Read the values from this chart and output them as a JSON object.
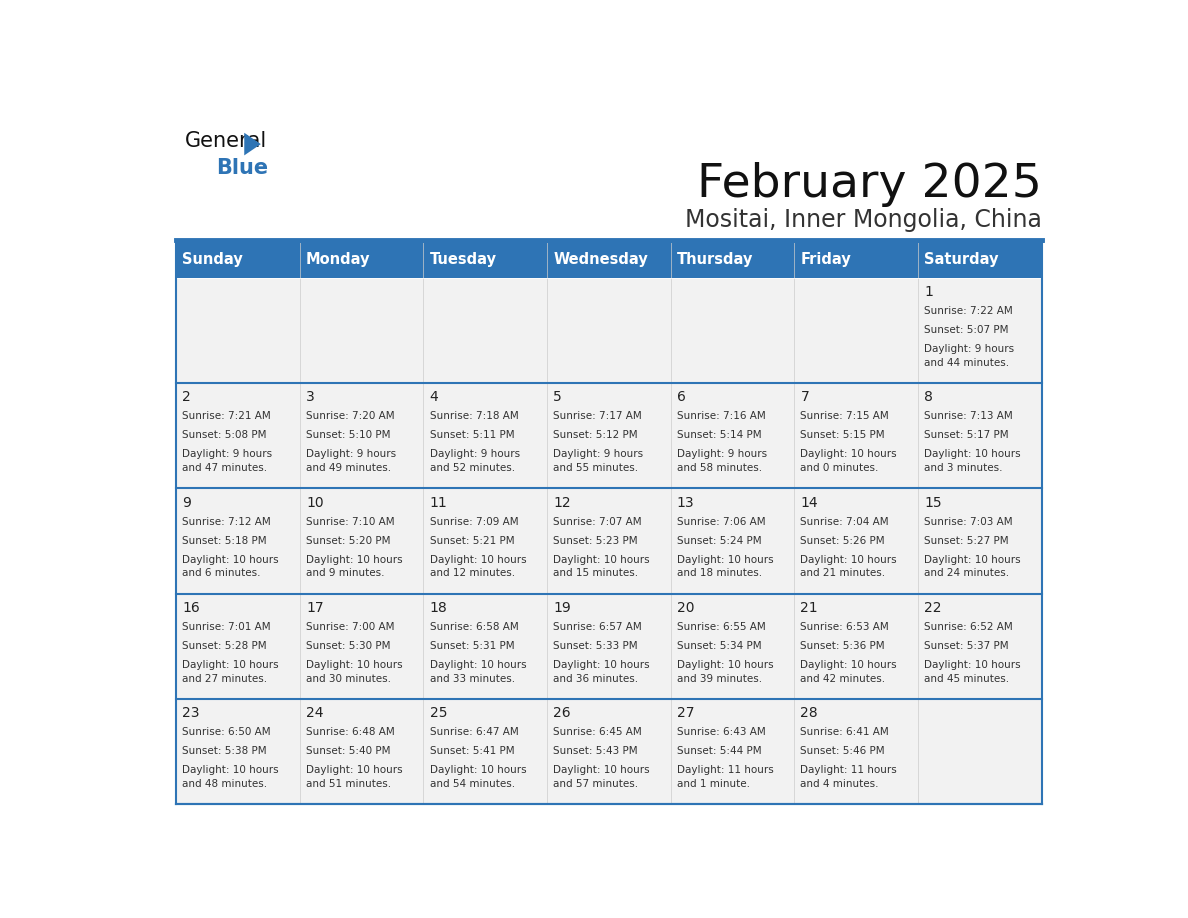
{
  "title": "February 2025",
  "subtitle": "Mositai, Inner Mongolia, China",
  "header_bg": "#2E74B5",
  "header_text": "#FFFFFF",
  "cell_bg_light": "#F2F2F2",
  "border_color": "#2E74B5",
  "day_names": [
    "Sunday",
    "Monday",
    "Tuesday",
    "Wednesday",
    "Thursday",
    "Friday",
    "Saturday"
  ],
  "days": [
    {
      "day": 1,
      "col": 6,
      "row": 0,
      "sunrise": "7:22 AM",
      "sunset": "5:07 PM",
      "daylight": "9 hours and 44 minutes."
    },
    {
      "day": 2,
      "col": 0,
      "row": 1,
      "sunrise": "7:21 AM",
      "sunset": "5:08 PM",
      "daylight": "9 hours and 47 minutes."
    },
    {
      "day": 3,
      "col": 1,
      "row": 1,
      "sunrise": "7:20 AM",
      "sunset": "5:10 PM",
      "daylight": "9 hours and 49 minutes."
    },
    {
      "day": 4,
      "col": 2,
      "row": 1,
      "sunrise": "7:18 AM",
      "sunset": "5:11 PM",
      "daylight": "9 hours and 52 minutes."
    },
    {
      "day": 5,
      "col": 3,
      "row": 1,
      "sunrise": "7:17 AM",
      "sunset": "5:12 PM",
      "daylight": "9 hours and 55 minutes."
    },
    {
      "day": 6,
      "col": 4,
      "row": 1,
      "sunrise": "7:16 AM",
      "sunset": "5:14 PM",
      "daylight": "9 hours and 58 minutes."
    },
    {
      "day": 7,
      "col": 5,
      "row": 1,
      "sunrise": "7:15 AM",
      "sunset": "5:15 PM",
      "daylight": "10 hours and 0 minutes."
    },
    {
      "day": 8,
      "col": 6,
      "row": 1,
      "sunrise": "7:13 AM",
      "sunset": "5:17 PM",
      "daylight": "10 hours and 3 minutes."
    },
    {
      "day": 9,
      "col": 0,
      "row": 2,
      "sunrise": "7:12 AM",
      "sunset": "5:18 PM",
      "daylight": "10 hours and 6 minutes."
    },
    {
      "day": 10,
      "col": 1,
      "row": 2,
      "sunrise": "7:10 AM",
      "sunset": "5:20 PM",
      "daylight": "10 hours and 9 minutes."
    },
    {
      "day": 11,
      "col": 2,
      "row": 2,
      "sunrise": "7:09 AM",
      "sunset": "5:21 PM",
      "daylight": "10 hours and 12 minutes."
    },
    {
      "day": 12,
      "col": 3,
      "row": 2,
      "sunrise": "7:07 AM",
      "sunset": "5:23 PM",
      "daylight": "10 hours and 15 minutes."
    },
    {
      "day": 13,
      "col": 4,
      "row": 2,
      "sunrise": "7:06 AM",
      "sunset": "5:24 PM",
      "daylight": "10 hours and 18 minutes."
    },
    {
      "day": 14,
      "col": 5,
      "row": 2,
      "sunrise": "7:04 AM",
      "sunset": "5:26 PM",
      "daylight": "10 hours and 21 minutes."
    },
    {
      "day": 15,
      "col": 6,
      "row": 2,
      "sunrise": "7:03 AM",
      "sunset": "5:27 PM",
      "daylight": "10 hours and 24 minutes."
    },
    {
      "day": 16,
      "col": 0,
      "row": 3,
      "sunrise": "7:01 AM",
      "sunset": "5:28 PM",
      "daylight": "10 hours and 27 minutes."
    },
    {
      "day": 17,
      "col": 1,
      "row": 3,
      "sunrise": "7:00 AM",
      "sunset": "5:30 PM",
      "daylight": "10 hours and 30 minutes."
    },
    {
      "day": 18,
      "col": 2,
      "row": 3,
      "sunrise": "6:58 AM",
      "sunset": "5:31 PM",
      "daylight": "10 hours and 33 minutes."
    },
    {
      "day": 19,
      "col": 3,
      "row": 3,
      "sunrise": "6:57 AM",
      "sunset": "5:33 PM",
      "daylight": "10 hours and 36 minutes."
    },
    {
      "day": 20,
      "col": 4,
      "row": 3,
      "sunrise": "6:55 AM",
      "sunset": "5:34 PM",
      "daylight": "10 hours and 39 minutes."
    },
    {
      "day": 21,
      "col": 5,
      "row": 3,
      "sunrise": "6:53 AM",
      "sunset": "5:36 PM",
      "daylight": "10 hours and 42 minutes."
    },
    {
      "day": 22,
      "col": 6,
      "row": 3,
      "sunrise": "6:52 AM",
      "sunset": "5:37 PM",
      "daylight": "10 hours and 45 minutes."
    },
    {
      "day": 23,
      "col": 0,
      "row": 4,
      "sunrise": "6:50 AM",
      "sunset": "5:38 PM",
      "daylight": "10 hours and 48 minutes."
    },
    {
      "day": 24,
      "col": 1,
      "row": 4,
      "sunrise": "6:48 AM",
      "sunset": "5:40 PM",
      "daylight": "10 hours and 51 minutes."
    },
    {
      "day": 25,
      "col": 2,
      "row": 4,
      "sunrise": "6:47 AM",
      "sunset": "5:41 PM",
      "daylight": "10 hours and 54 minutes."
    },
    {
      "day": 26,
      "col": 3,
      "row": 4,
      "sunrise": "6:45 AM",
      "sunset": "5:43 PM",
      "daylight": "10 hours and 57 minutes."
    },
    {
      "day": 27,
      "col": 4,
      "row": 4,
      "sunrise": "6:43 AM",
      "sunset": "5:44 PM",
      "daylight": "11 hours and 1 minute."
    },
    {
      "day": 28,
      "col": 5,
      "row": 4,
      "sunrise": "6:41 AM",
      "sunset": "5:46 PM",
      "daylight": "11 hours and 4 minutes."
    }
  ],
  "num_rows": 5,
  "num_cols": 7
}
